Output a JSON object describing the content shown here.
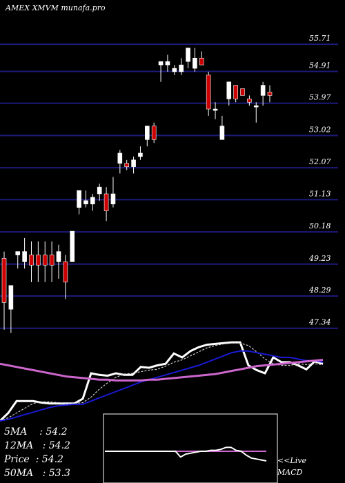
{
  "header": {
    "title": "AMEX  XMVM munafa.pro"
  },
  "colors": {
    "background": "#000000",
    "up_candle": "#ffffff",
    "down_candle": "#cc0000",
    "grid": "#1c1c7a",
    "price": "#ffffff",
    "ma_short": "#d0d0d0",
    "ma_mid": "#1a1ad4",
    "ma_long": "#cc66cc",
    "macd_line": "#ffffff",
    "macd_signal": "#cc66cc"
  },
  "chart_data": [
    {
      "type": "candlestick",
      "title": "AMEX  XMVM munafa.pro",
      "y_axis_ticks": [
        55.71,
        54.91,
        53.97,
        53.02,
        52.07,
        51.13,
        50.18,
        49.23,
        48.29,
        47.34
      ],
      "ylim": [
        47.05,
        56.2
      ],
      "grid": true,
      "candles": [
        {
          "o": 49.4,
          "h": 49.6,
          "l": 47.3,
          "c": 48.1
        },
        {
          "o": 47.9,
          "h": 48.6,
          "l": 47.2,
          "c": 48.6
        },
        {
          "o": 49.5,
          "h": 49.6,
          "l": 49.1,
          "c": 49.6
        },
        {
          "o": 49.3,
          "h": 50.0,
          "l": 49.1,
          "c": 49.6
        },
        {
          "o": 49.5,
          "h": 49.9,
          "l": 48.7,
          "c": 49.2
        },
        {
          "o": 49.5,
          "h": 49.9,
          "l": 48.7,
          "c": 49.2
        },
        {
          "o": 49.5,
          "h": 49.9,
          "l": 48.7,
          "c": 49.2
        },
        {
          "o": 49.5,
          "h": 49.9,
          "l": 48.7,
          "c": 49.2
        },
        {
          "o": 49.3,
          "h": 49.8,
          "l": 48.8,
          "c": 49.6
        },
        {
          "o": 49.3,
          "h": 49.5,
          "l": 48.2,
          "c": 48.7
        },
        {
          "o": 49.3,
          "h": 50.2,
          "l": 49.3,
          "c": 50.2
        },
        {
          "o": 50.9,
          "h": 51.4,
          "l": 50.7,
          "c": 51.4
        },
        {
          "o": 51.0,
          "h": 51.4,
          "l": 50.9,
          "c": 51.1
        },
        {
          "o": 51.0,
          "h": 51.3,
          "l": 50.8,
          "c": 51.2
        },
        {
          "o": 51.3,
          "h": 51.6,
          "l": 51.1,
          "c": 51.5
        },
        {
          "o": 51.3,
          "h": 51.5,
          "l": 50.5,
          "c": 50.8
        },
        {
          "o": 51.0,
          "h": 51.8,
          "l": 50.9,
          "c": 51.3
        },
        {
          "o": 52.2,
          "h": 52.6,
          "l": 51.9,
          "c": 52.5
        },
        {
          "o": 52.2,
          "h": 52.3,
          "l": 52.0,
          "c": 52.1
        },
        {
          "o": 52.1,
          "h": 52.4,
          "l": 51.9,
          "c": 52.3
        },
        {
          "o": 52.4,
          "h": 52.7,
          "l": 52.3,
          "c": 52.5
        },
        {
          "o": 52.9,
          "h": 53.3,
          "l": 52.7,
          "c": 53.3
        },
        {
          "o": 53.3,
          "h": 53.4,
          "l": 52.8,
          "c": 52.9
        },
        {
          "o": 55.1,
          "h": 55.2,
          "l": 54.6,
          "c": 55.2
        },
        {
          "o": 55.1,
          "h": 55.4,
          "l": 54.9,
          "c": 55.2
        },
        {
          "o": 54.9,
          "h": 55.1,
          "l": 54.8,
          "c": 55.0
        },
        {
          "o": 54.9,
          "h": 55.3,
          "l": 54.8,
          "c": 55.1
        },
        {
          "o": 55.2,
          "h": 55.6,
          "l": 55.0,
          "c": 55.6
        },
        {
          "o": 55.0,
          "h": 55.6,
          "l": 54.9,
          "c": 55.3
        },
        {
          "o": 55.3,
          "h": 55.5,
          "l": 55.1,
          "c": 55.1
        },
        {
          "o": 54.8,
          "h": 54.9,
          "l": 53.6,
          "c": 53.8
        },
        {
          "o": 53.8,
          "h": 54.0,
          "l": 53.5,
          "c": 53.8
        },
        {
          "o": 52.9,
          "h": 53.6,
          "l": 52.9,
          "c": 53.3
        },
        {
          "o": 54.1,
          "h": 54.6,
          "l": 53.9,
          "c": 54.6
        },
        {
          "o": 54.5,
          "h": 54.5,
          "l": 54.0,
          "c": 54.1
        },
        {
          "o": 54.4,
          "h": 54.4,
          "l": 54.2,
          "c": 54.2
        },
        {
          "o": 54.1,
          "h": 54.2,
          "l": 53.9,
          "c": 54.0
        },
        {
          "o": 53.9,
          "h": 54.0,
          "l": 53.4,
          "c": 53.9
        },
        {
          "o": 54.2,
          "h": 54.6,
          "l": 53.9,
          "c": 54.5
        },
        {
          "o": 54.3,
          "h": 54.5,
          "l": 54.0,
          "c": 54.2
        }
      ]
    },
    {
      "type": "line",
      "series": [
        {
          "name": "Price",
          "values": [
            0.0,
            0.1,
            0.25,
            0.25,
            0.25,
            0.23,
            0.22,
            0.22,
            0.22,
            0.22,
            0.28,
            0.6,
            0.58,
            0.57,
            0.6,
            0.58,
            0.58,
            0.68,
            0.67,
            0.7,
            0.72,
            0.85,
            0.8,
            0.88,
            0.93,
            0.96,
            0.97,
            0.98,
            0.99,
            0.99,
            0.7,
            0.64,
            0.6,
            0.8,
            0.74,
            0.74,
            0.7,
            0.65,
            0.75,
            0.72
          ]
        },
        {
          "name": "5MA",
          "values": [
            0.0,
            0.04,
            0.1,
            0.16,
            0.22,
            0.24,
            0.24,
            0.23,
            0.22,
            0.22,
            0.23,
            0.3,
            0.4,
            0.48,
            0.55,
            0.59,
            0.6,
            0.62,
            0.64,
            0.65,
            0.69,
            0.74,
            0.77,
            0.82,
            0.87,
            0.92,
            0.95,
            0.97,
            0.98,
            0.98,
            0.95,
            0.87,
            0.78,
            0.72,
            0.7,
            0.7,
            0.72,
            0.71,
            0.72,
            0.71
          ]
        },
        {
          "name": "12MA",
          "values": [
            0.0,
            0.02,
            0.05,
            0.08,
            0.11,
            0.14,
            0.17,
            0.19,
            0.2,
            0.21,
            0.21,
            0.25,
            0.29,
            0.33,
            0.37,
            0.41,
            0.45,
            0.49,
            0.52,
            0.55,
            0.58,
            0.61,
            0.64,
            0.67,
            0.7,
            0.74,
            0.78,
            0.82,
            0.86,
            0.88,
            0.88,
            0.86,
            0.84,
            0.82,
            0.8,
            0.8,
            0.78,
            0.76,
            0.76,
            0.74
          ]
        },
        {
          "name": "50MA",
          "values": [
            0.72,
            0.7,
            0.68,
            0.66,
            0.64,
            0.62,
            0.6,
            0.58,
            0.56,
            0.55,
            0.54,
            0.53,
            0.52,
            0.52,
            0.51,
            0.51,
            0.51,
            0.51,
            0.52,
            0.52,
            0.53,
            0.54,
            0.55,
            0.56,
            0.57,
            0.58,
            0.59,
            0.61,
            0.63,
            0.65,
            0.67,
            0.69,
            0.7,
            0.71,
            0.72,
            0.73,
            0.74,
            0.75,
            0.76,
            0.77
          ]
        }
      ],
      "legend": [
        {
          "label": "5MA",
          "value": "54.2"
        },
        {
          "label": "12MA",
          "value": "54.2"
        },
        {
          "label": "Price",
          "value": "54.2"
        },
        {
          "label": "50MA",
          "value": "53.3"
        }
      ]
    },
    {
      "type": "line",
      "label": "<<Live MACD",
      "series": [
        {
          "name": "MACD",
          "values": [
            0.5,
            0.5,
            0.5,
            0.5,
            0.5,
            0.5,
            0.5,
            0.5,
            0.5,
            0.5,
            0.5,
            0.5,
            0.5,
            0.5,
            0.5,
            0.2,
            0.35,
            0.4,
            0.45,
            0.5,
            0.5,
            0.55,
            0.55,
            0.6,
            0.7,
            0.7,
            0.55,
            0.5,
            0.3,
            0.15,
            0.1,
            0.05,
            0.0
          ]
        },
        {
          "name": "Signal",
          "values": [
            0.5,
            0.5,
            0.5,
            0.5,
            0.5,
            0.5,
            0.5,
            0.5,
            0.5,
            0.5,
            0.5,
            0.5,
            0.5,
            0.5,
            0.5,
            0.5,
            0.5,
            0.5,
            0.5,
            0.5,
            0.5,
            0.5,
            0.5,
            0.5,
            0.5,
            0.5,
            0.5,
            0.5,
            0.5,
            0.5,
            0.5,
            0.5,
            0.5
          ]
        }
      ]
    }
  ]
}
